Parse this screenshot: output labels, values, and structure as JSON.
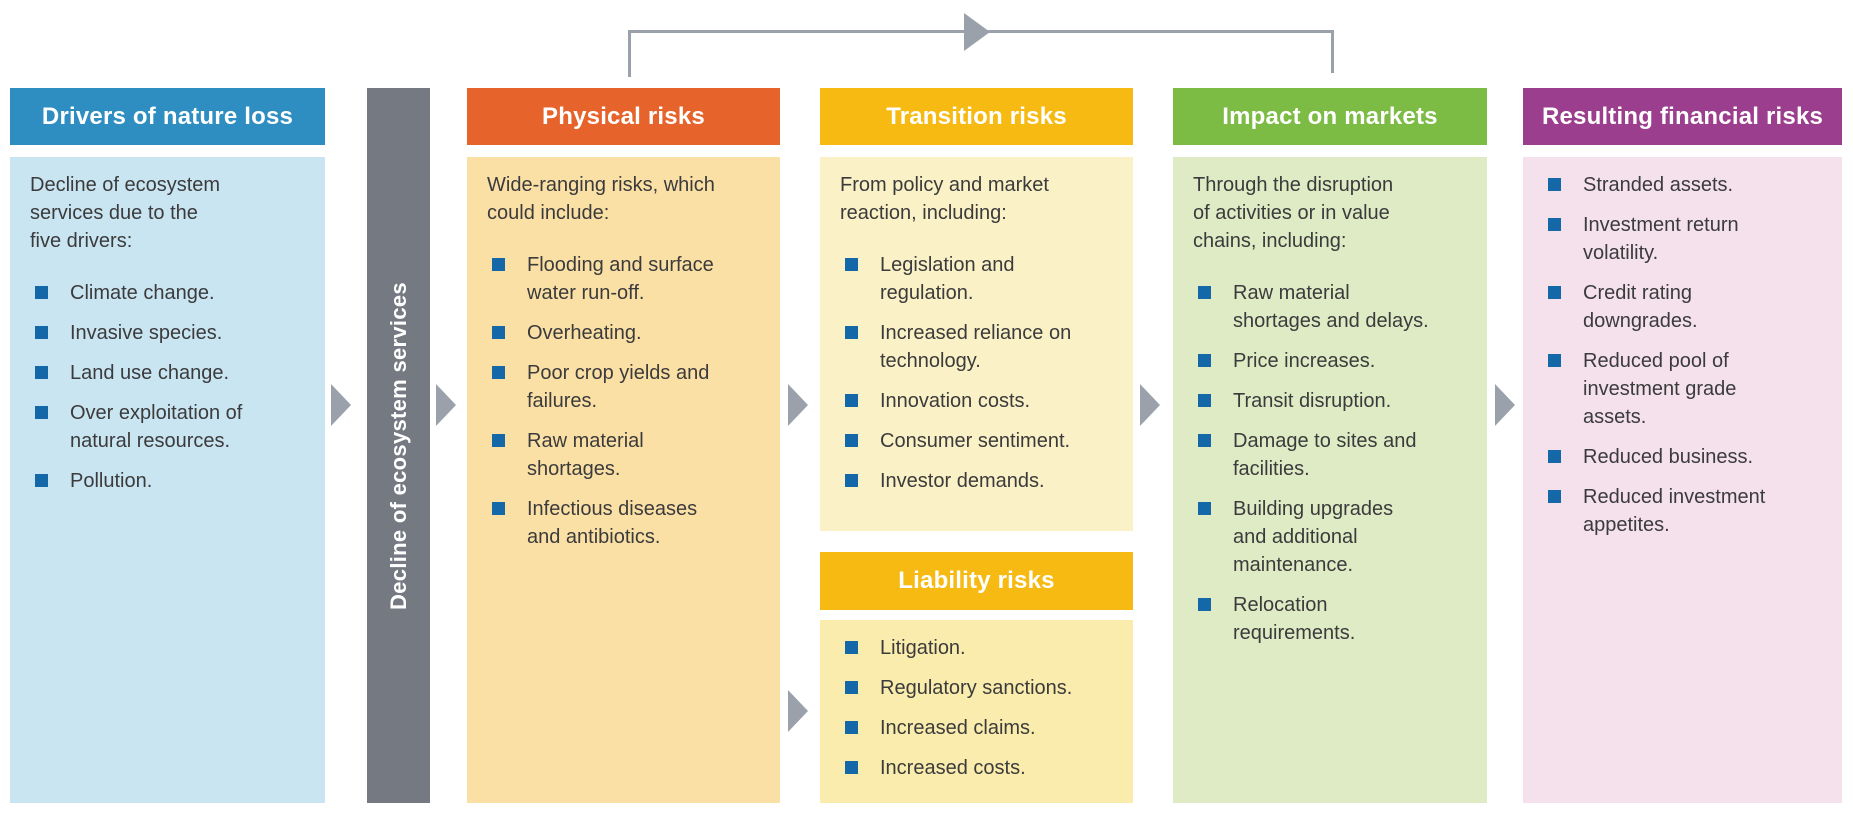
{
  "colors": {
    "bullet_square": "#1568A8",
    "body_text": "#3B3B3C",
    "arrow_gray": "#9BA1AA",
    "ecosystem_bar_gray": "#757A82"
  },
  "ecosystem_bar": {
    "label": "Decline of ecosystem services",
    "color": "#757A82"
  },
  "columns": [
    {
      "id": "drivers",
      "header": "Drivers of nature loss",
      "header_color": "#2E8EC1",
      "body_color": "#C9E5F2",
      "intro": "Decline of ecosystem\nservices due to the\nfive drivers:",
      "bullets": [
        "Climate change.",
        "Invasive species.",
        "Land use change.",
        "Over exploitation of\nnatural resources.",
        "Pollution."
      ]
    },
    {
      "id": "physical",
      "header": "Physical risks",
      "header_color": "#E7632C",
      "body_color": "#FBE0A6",
      "intro": "Wide-ranging risks, which\ncould include:",
      "bullets": [
        "Flooding and surface\nwater run-off.",
        "Overheating.",
        "Poor crop yields and\nfailures.",
        "Raw material\nshortages.",
        "Infectious diseases\nand antibiotics."
      ]
    },
    {
      "id": "transition",
      "header": "Transition risks",
      "header_color": "#F7BA13",
      "body_color": "#FAF1C6",
      "intro": "From policy and market\nreaction, including:",
      "bullets": [
        "Legislation and\nregulation.",
        "Increased reliance on\ntechnology.",
        "Innovation costs.",
        "Consumer sentiment.",
        "Investor demands."
      ]
    },
    {
      "id": "impact",
      "header": "Impact on markets",
      "header_color": "#7CBB44",
      "body_color": "#DFEBC5",
      "intro": "Through the disruption\nof activities or in value\nchains, including:",
      "bullets": [
        "Raw material\nshortages and delays.",
        "Price increases.",
        "Transit disruption.",
        "Damage to sites and\nfacilities.",
        "Building upgrades\nand additional\nmaintenance.",
        "Relocation\nrequirements."
      ]
    },
    {
      "id": "financial",
      "header": "Resulting financial risks",
      "header_color": "#9B3E8D",
      "body_color": "#F4E1EC",
      "intro": "",
      "bullets": [
        "Stranded assets.",
        "Investment return\nvolatility.",
        "Credit rating\ndowngrades.",
        "Reduced pool of\ninvestment grade\nassets.",
        "Reduced business.",
        "Reduced investment\nappetites."
      ]
    }
  ],
  "liability": {
    "header": "Liability risks",
    "header_color": "#E4A722",
    "body_color": "#FAECAC",
    "bullets": [
      "Litigation.",
      "Regulatory sanctions.",
      "Increased claims.",
      "Increased costs."
    ]
  }
}
